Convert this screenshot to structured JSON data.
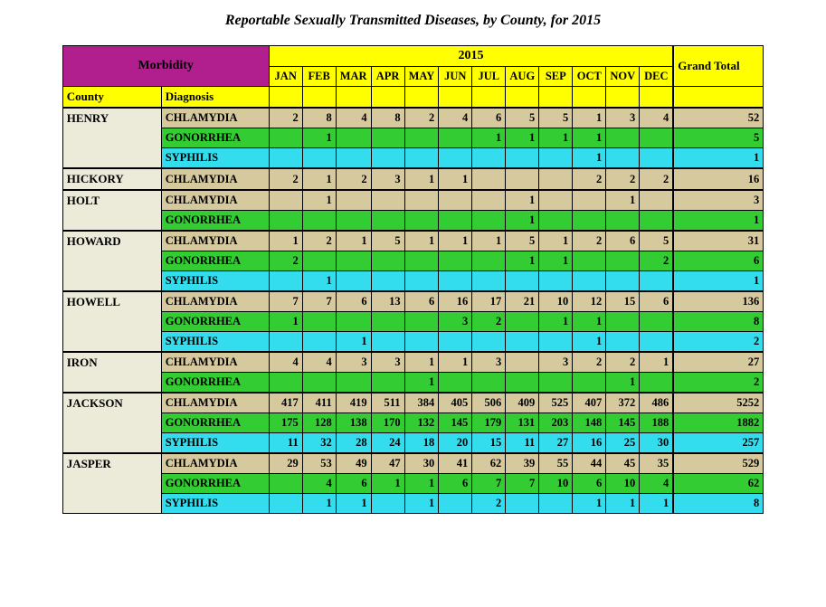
{
  "title": "Reportable Sexually Transmitted Diseases, by County, for 2015",
  "colors": {
    "yellow": "#ffff00",
    "magenta": "#b01f8d",
    "morbidity_text": "#000000",
    "county_bg": "#ecead9",
    "chlamydia_bg": "#d6c99e",
    "gonorrhea_bg": "#33cc33",
    "syphilis_bg": "#33ddee",
    "border": "#000000"
  },
  "year": "2015",
  "morbidity_label": "Morbidity",
  "grand_total_label": "Grand Total",
  "county_label": "County",
  "diagnosis_label": "Diagnosis",
  "months": [
    "JAN",
    "FEB",
    "MAR",
    "APR",
    "MAY",
    "JUN",
    "JUL",
    "AUG",
    "SEP",
    "OCT",
    "NOV",
    "DEC"
  ],
  "counties": [
    {
      "name": "HENRY",
      "rows": [
        {
          "diag": "CHLAMYDIA",
          "cells": [
            "2",
            "8",
            "4",
            "8",
            "2",
            "4",
            "6",
            "5",
            "5",
            "1",
            "3",
            "4"
          ],
          "total": "52"
        },
        {
          "diag": "GONORRHEA",
          "cells": [
            "",
            "1",
            "",
            "",
            "",
            "",
            "1",
            "1",
            "1",
            "1",
            "",
            ""
          ],
          "total": "5"
        },
        {
          "diag": "SYPHILIS",
          "cells": [
            "",
            "",
            "",
            "",
            "",
            "",
            "",
            "",
            "",
            "1",
            "",
            ""
          ],
          "total": "1"
        }
      ]
    },
    {
      "name": "HICKORY",
      "rows": [
        {
          "diag": "CHLAMYDIA",
          "cells": [
            "2",
            "1",
            "2",
            "3",
            "1",
            "1",
            "",
            "",
            "",
            "2",
            "2",
            "2"
          ],
          "total": "16"
        }
      ]
    },
    {
      "name": "HOLT",
      "rows": [
        {
          "diag": "CHLAMYDIA",
          "cells": [
            "",
            "1",
            "",
            "",
            "",
            "",
            "",
            "1",
            "",
            "",
            "1",
            ""
          ],
          "total": "3"
        },
        {
          "diag": "GONORRHEA",
          "cells": [
            "",
            "",
            "",
            "",
            "",
            "",
            "",
            "1",
            "",
            "",
            "",
            ""
          ],
          "total": "1"
        }
      ]
    },
    {
      "name": "HOWARD",
      "rows": [
        {
          "diag": "CHLAMYDIA",
          "cells": [
            "1",
            "2",
            "1",
            "5",
            "1",
            "1",
            "1",
            "5",
            "1",
            "2",
            "6",
            "5"
          ],
          "total": "31"
        },
        {
          "diag": "GONORRHEA",
          "cells": [
            "2",
            "",
            "",
            "",
            "",
            "",
            "",
            "1",
            "1",
            "",
            "",
            "2"
          ],
          "total": "6"
        },
        {
          "diag": "SYPHILIS",
          "cells": [
            "",
            "1",
            "",
            "",
            "",
            "",
            "",
            "",
            "",
            "",
            "",
            ""
          ],
          "total": "1"
        }
      ]
    },
    {
      "name": "HOWELL",
      "rows": [
        {
          "diag": "CHLAMYDIA",
          "cells": [
            "7",
            "7",
            "6",
            "13",
            "6",
            "16",
            "17",
            "21",
            "10",
            "12",
            "15",
            "6"
          ],
          "total": "136"
        },
        {
          "diag": "GONORRHEA",
          "cells": [
            "1",
            "",
            "",
            "",
            "",
            "3",
            "2",
            "",
            "1",
            "1",
            "",
            ""
          ],
          "total": "8"
        },
        {
          "diag": "SYPHILIS",
          "cells": [
            "",
            "",
            "1",
            "",
            "",
            "",
            "",
            "",
            "",
            "1",
            "",
            ""
          ],
          "total": "2"
        }
      ]
    },
    {
      "name": "IRON",
      "rows": [
        {
          "diag": "CHLAMYDIA",
          "cells": [
            "4",
            "4",
            "3",
            "3",
            "1",
            "1",
            "3",
            "",
            "3",
            "2",
            "2",
            "1"
          ],
          "total": "27"
        },
        {
          "diag": "GONORRHEA",
          "cells": [
            "",
            "",
            "",
            "",
            "1",
            "",
            "",
            "",
            "",
            "",
            "1",
            ""
          ],
          "total": "2"
        }
      ]
    },
    {
      "name": "JACKSON",
      "rows": [
        {
          "diag": "CHLAMYDIA",
          "cells": [
            "417",
            "411",
            "419",
            "511",
            "384",
            "405",
            "506",
            "409",
            "525",
            "407",
            "372",
            "486"
          ],
          "total": "5252"
        },
        {
          "diag": "GONORRHEA",
          "cells": [
            "175",
            "128",
            "138",
            "170",
            "132",
            "145",
            "179",
            "131",
            "203",
            "148",
            "145",
            "188"
          ],
          "total": "1882"
        },
        {
          "diag": "SYPHILIS",
          "cells": [
            "11",
            "32",
            "28",
            "24",
            "18",
            "20",
            "15",
            "11",
            "27",
            "16",
            "25",
            "30"
          ],
          "total": "257"
        }
      ]
    },
    {
      "name": "JASPER",
      "rows": [
        {
          "diag": "CHLAMYDIA",
          "cells": [
            "29",
            "53",
            "49",
            "47",
            "30",
            "41",
            "62",
            "39",
            "55",
            "44",
            "45",
            "35"
          ],
          "total": "529"
        },
        {
          "diag": "GONORRHEA",
          "cells": [
            "",
            "4",
            "6",
            "1",
            "1",
            "6",
            "7",
            "7",
            "10",
            "6",
            "10",
            "4"
          ],
          "total": "62"
        },
        {
          "diag": "SYPHILIS",
          "cells": [
            "",
            "1",
            "1",
            "",
            "1",
            "",
            "2",
            "",
            "",
            "1",
            "1",
            "1"
          ],
          "total": "8"
        }
      ]
    }
  ]
}
